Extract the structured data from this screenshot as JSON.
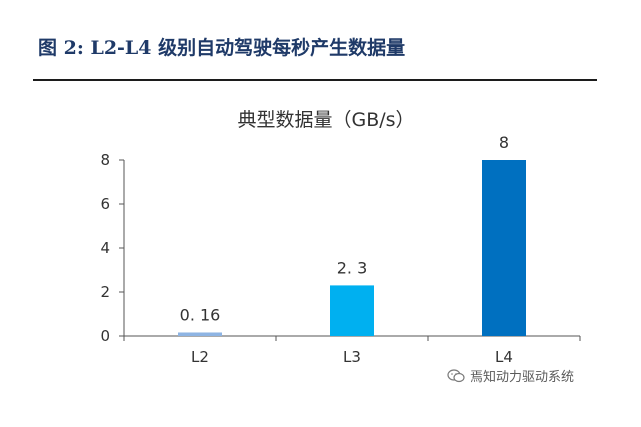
{
  "figure": {
    "title": "图 2:  L2-L4 级别自动驾驶每秒产生数据量",
    "watermark": "焉知动力驱动系统",
    "watermark_icon": "wechat-icon"
  },
  "chart_data": {
    "type": "bar",
    "title": "典型数据量（GB/s）",
    "categories": [
      "L2",
      "L3",
      "L4"
    ],
    "values": [
      0.16,
      2.3,
      8
    ],
    "data_labels": [
      "0. 16",
      "2. 3",
      "8"
    ],
    "bar_colors": [
      "#8eb4e3",
      "#00b0f0",
      "#0070c0"
    ],
    "xlabel": "",
    "ylabel": "",
    "ylim": [
      0,
      8
    ],
    "yticks": [
      0,
      2,
      4,
      6,
      8
    ],
    "grid": false,
    "legend": "none"
  }
}
